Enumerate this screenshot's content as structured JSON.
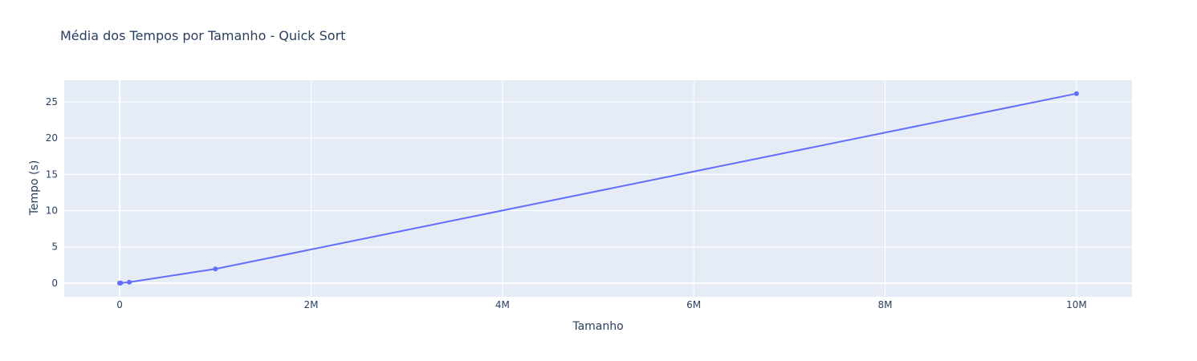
{
  "chart_data": {
    "type": "line",
    "title": "Média dos Tempos por Tamanho - Quick Sort",
    "xlabel": "Tamanho",
    "ylabel": "Tempo (s)",
    "x": [
      10,
      100,
      1000,
      10000,
      100000,
      1000000,
      10000000
    ],
    "series": [
      {
        "values": [
          0.0,
          0.0,
          0.0,
          0.01,
          0.12,
          1.95,
          26.15
        ]
      }
    ],
    "xlim": [
      -580000,
      10580000
    ],
    "ylim": [
      -1.9,
      28.0
    ],
    "xticks": [
      {
        "value": 0,
        "label": "0"
      },
      {
        "value": 2000000,
        "label": "2M"
      },
      {
        "value": 4000000,
        "label": "4M"
      },
      {
        "value": 6000000,
        "label": "6M"
      },
      {
        "value": 8000000,
        "label": "8M"
      },
      {
        "value": 10000000,
        "label": "10M"
      }
    ],
    "yticks": [
      {
        "value": 0,
        "label": "0"
      },
      {
        "value": 5,
        "label": "5"
      },
      {
        "value": 10,
        "label": "10"
      },
      {
        "value": 15,
        "label": "15"
      },
      {
        "value": 20,
        "label": "20"
      },
      {
        "value": 25,
        "label": "25"
      }
    ],
    "grid": true,
    "colors": {
      "line": "#636efa",
      "plot_bg": "#e5ecf6",
      "grid": "#ffffff",
      "text": "#2a3f5f"
    }
  }
}
